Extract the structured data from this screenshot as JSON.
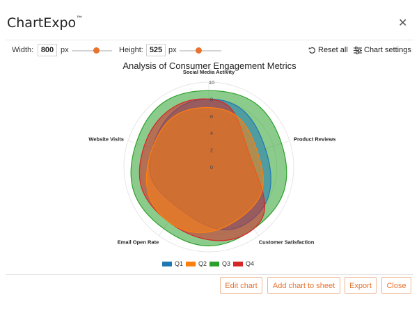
{
  "app": {
    "title": "ChartExpo",
    "trademark": "™"
  },
  "toolbar": {
    "width_label": "Width:",
    "width_value": "800",
    "width_unit": "px",
    "height_label": "Height:",
    "height_value": "525",
    "height_unit": "px",
    "reset_label": "Reset all",
    "settings_label": "Chart settings"
  },
  "chart_data": {
    "type": "radar",
    "title": "Analysis of Consumer Engagement Metrics",
    "axes": [
      "Social Media Activity",
      "Product Reviews",
      "Customer Satisfaction",
      "Email Open Rate",
      "Website Visits"
    ],
    "radial_ticks": [
      "10",
      "8",
      "6",
      "4",
      "2",
      "0"
    ],
    "rmax": 10,
    "series": [
      {
        "name": "Q1",
        "color": "#1f77b4",
        "values": [
          8,
          7,
          8,
          6,
          7
        ]
      },
      {
        "name": "Q2",
        "color": "#ff7f0e",
        "values": [
          7,
          6,
          7,
          8,
          7
        ]
      },
      {
        "name": "Q3",
        "color": "#2ca02c",
        "values": [
          9,
          9,
          9,
          9,
          9
        ]
      },
      {
        "name": "Q4",
        "color": "#d62728",
        "values": [
          8,
          5,
          9,
          8,
          8
        ]
      }
    ],
    "legend_position": "bottom"
  },
  "buttons": {
    "edit": "Edit chart",
    "add": "Add chart to sheet",
    "export": "Export",
    "close": "Close"
  },
  "colors": {
    "accent": "#e8722e"
  }
}
